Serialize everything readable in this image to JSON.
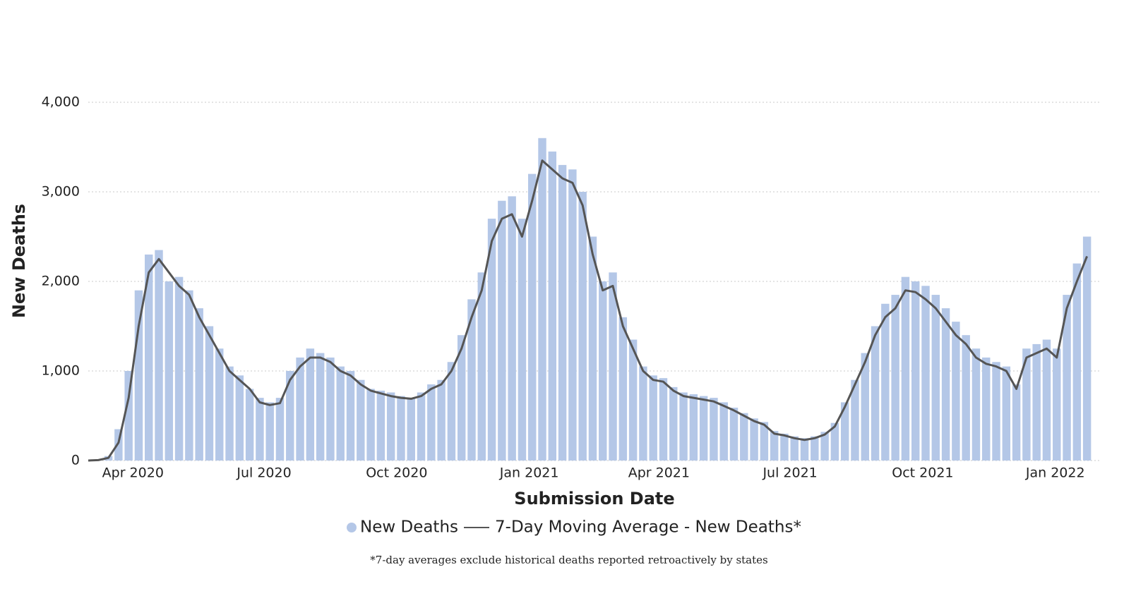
{
  "chart_data": {
    "type": "bar",
    "x_label": "Submission Date",
    "y_label": "New Deaths",
    "footnote": "*7-day averages exclude historical deaths reported retroactively by states",
    "xlim": [
      "2020-03-01",
      "2022-02-01"
    ],
    "xticks": [
      {
        "value": "2020-04-01",
        "label": "Apr 2020"
      },
      {
        "value": "2020-07-01",
        "label": "Jul 2020"
      },
      {
        "value": "2020-10-01",
        "label": "Oct 2020"
      },
      {
        "value": "2021-01-01",
        "label": "Jan 2021"
      },
      {
        "value": "2021-04-01",
        "label": "Apr 2021"
      },
      {
        "value": "2021-07-01",
        "label": "Jul 2021"
      },
      {
        "value": "2021-10-01",
        "label": "Oct 2021"
      },
      {
        "value": "2022-01-01",
        "label": "Jan 2022"
      }
    ],
    "ylim": [
      0,
      4000
    ],
    "yticks": [
      0,
      {
        "value": 1000,
        "label": "1,000"
      },
      {
        "value": 2000,
        "label": "2,000"
      },
      {
        "value": 3000,
        "label": "3,000"
      },
      {
        "value": 4000,
        "label": "4,000"
      }
    ],
    "grid": true,
    "x": [
      "2020-03-01",
      "2020-03-08",
      "2020-03-15",
      "2020-03-22",
      "2020-03-29",
      "2020-04-05",
      "2020-04-12",
      "2020-04-19",
      "2020-04-26",
      "2020-05-03",
      "2020-05-10",
      "2020-05-17",
      "2020-05-24",
      "2020-05-31",
      "2020-06-07",
      "2020-06-14",
      "2020-06-21",
      "2020-06-28",
      "2020-07-05",
      "2020-07-12",
      "2020-07-19",
      "2020-07-26",
      "2020-08-02",
      "2020-08-09",
      "2020-08-16",
      "2020-08-23",
      "2020-08-30",
      "2020-09-06",
      "2020-09-13",
      "2020-09-20",
      "2020-09-27",
      "2020-10-04",
      "2020-10-11",
      "2020-10-18",
      "2020-10-25",
      "2020-11-01",
      "2020-11-08",
      "2020-11-15",
      "2020-11-22",
      "2020-11-29",
      "2020-12-06",
      "2020-12-13",
      "2020-12-20",
      "2020-12-27",
      "2021-01-03",
      "2021-01-10",
      "2021-01-17",
      "2021-01-24",
      "2021-01-31",
      "2021-02-07",
      "2021-02-14",
      "2021-02-21",
      "2021-02-28",
      "2021-03-07",
      "2021-03-14",
      "2021-03-21",
      "2021-03-28",
      "2021-04-04",
      "2021-04-11",
      "2021-04-18",
      "2021-04-25",
      "2021-05-02",
      "2021-05-09",
      "2021-05-16",
      "2021-05-23",
      "2021-05-30",
      "2021-06-06",
      "2021-06-13",
      "2021-06-20",
      "2021-06-27",
      "2021-07-04",
      "2021-07-11",
      "2021-07-18",
      "2021-07-25",
      "2021-08-01",
      "2021-08-08",
      "2021-08-15",
      "2021-08-22",
      "2021-08-29",
      "2021-09-05",
      "2021-09-12",
      "2021-09-19",
      "2021-09-26",
      "2021-10-03",
      "2021-10-10",
      "2021-10-17",
      "2021-10-24",
      "2021-10-31",
      "2021-11-07",
      "2021-11-14",
      "2021-11-21",
      "2021-11-28",
      "2021-12-05",
      "2021-12-12",
      "2021-12-19",
      "2021-12-26",
      "2022-01-02",
      "2022-01-09",
      "2022-01-16",
      "2022-01-23"
    ],
    "series": [
      {
        "name": "New Deaths",
        "type": "bar",
        "color": "#b4c7e7",
        "values": [
          0,
          10,
          50,
          350,
          1000,
          1900,
          2300,
          2350,
          2000,
          2050,
          1900,
          1700,
          1500,
          1250,
          1050,
          950,
          800,
          700,
          650,
          700,
          1000,
          1150,
          1250,
          1200,
          1150,
          1050,
          1000,
          900,
          800,
          780,
          760,
          720,
          700,
          760,
          850,
          900,
          1100,
          1400,
          1800,
          2100,
          2700,
          2900,
          2950,
          2700,
          3200,
          3600,
          3450,
          3300,
          3250,
          3000,
          2500,
          2000,
          2100,
          1600,
          1350,
          1050,
          950,
          920,
          820,
          760,
          740,
          720,
          700,
          650,
          590,
          530,
          470,
          430,
          330,
          300,
          270,
          250,
          270,
          320,
          420,
          650,
          900,
          1200,
          1500,
          1750,
          1850,
          2050,
          2000,
          1950,
          1850,
          1700,
          1550,
          1400,
          1250,
          1150,
          1100,
          1050,
          850,
          1250,
          1300,
          1350,
          1250,
          1850,
          2200,
          2500
        ]
      },
      {
        "name": "7-Day Moving Average - New Deaths*",
        "type": "line",
        "color": "#555555",
        "values": [
          0,
          5,
          30,
          200,
          700,
          1500,
          2100,
          2250,
          2100,
          1950,
          1850,
          1600,
          1400,
          1200,
          1000,
          900,
          800,
          650,
          620,
          640,
          900,
          1050,
          1150,
          1150,
          1100,
          1000,
          950,
          850,
          780,
          750,
          720,
          700,
          690,
          720,
          800,
          850,
          1000,
          1250,
          1600,
          1900,
          2450,
          2700,
          2750,
          2500,
          2900,
          3350,
          3250,
          3150,
          3100,
          2850,
          2300,
          1900,
          1950,
          1500,
          1250,
          1000,
          900,
          880,
          780,
          720,
          700,
          680,
          660,
          610,
          560,
          500,
          440,
          400,
          300,
          280,
          250,
          230,
          250,
          290,
          380,
          600,
          850,
          1100,
          1400,
          1600,
          1700,
          1900,
          1880,
          1800,
          1700,
          1550,
          1400,
          1300,
          1150,
          1080,
          1050,
          1000,
          800,
          1150,
          1200,
          1250,
          1150,
          1700,
          2000,
          2280
        ]
      }
    ]
  }
}
